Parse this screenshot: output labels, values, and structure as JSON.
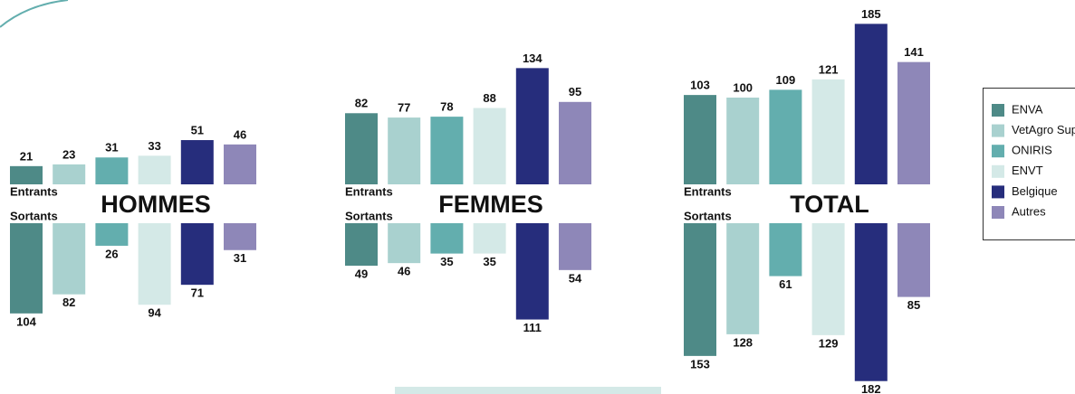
{
  "chart_data": {
    "type": "bar",
    "series": [
      {
        "name": "ENVA",
        "color": "#4e8a87",
        "values": [
          [
            21,
            104
          ],
          [
            82,
            49
          ],
          [
            103,
            153
          ]
        ]
      },
      {
        "name": "VetAgro Sup",
        "color": "#a9d1cf",
        "values": [
          [
            23,
            82
          ],
          [
            77,
            46
          ],
          [
            100,
            128
          ]
        ]
      },
      {
        "name": "ONIRIS",
        "color": "#63aeae",
        "values": [
          [
            31,
            26
          ],
          [
            78,
            35
          ],
          [
            109,
            61
          ]
        ]
      },
      {
        "name": "ENVT",
        "color": "#d4e9e7",
        "values": [
          [
            33,
            94
          ],
          [
            88,
            35
          ],
          [
            121,
            129
          ]
        ]
      },
      {
        "name": "Belgique",
        "color": "#262d7c",
        "values": [
          [
            51,
            71
          ],
          [
            134,
            111
          ],
          [
            185,
            182
          ]
        ]
      },
      {
        "name": "Autres",
        "color": "#8e87b8",
        "values": [
          [
            46,
            31
          ],
          [
            95,
            54
          ],
          [
            141,
            85
          ]
        ]
      }
    ],
    "panels": [
      {
        "title": "HOMMES",
        "categories": [
          "Entrants",
          "Sortants"
        ]
      },
      {
        "title": "FEMMES",
        "categories": [
          "Entrants",
          "Sortants"
        ]
      },
      {
        "title": "TOTAL",
        "categories": [
          "Entrants",
          "Sortants"
        ]
      }
    ]
  }
}
